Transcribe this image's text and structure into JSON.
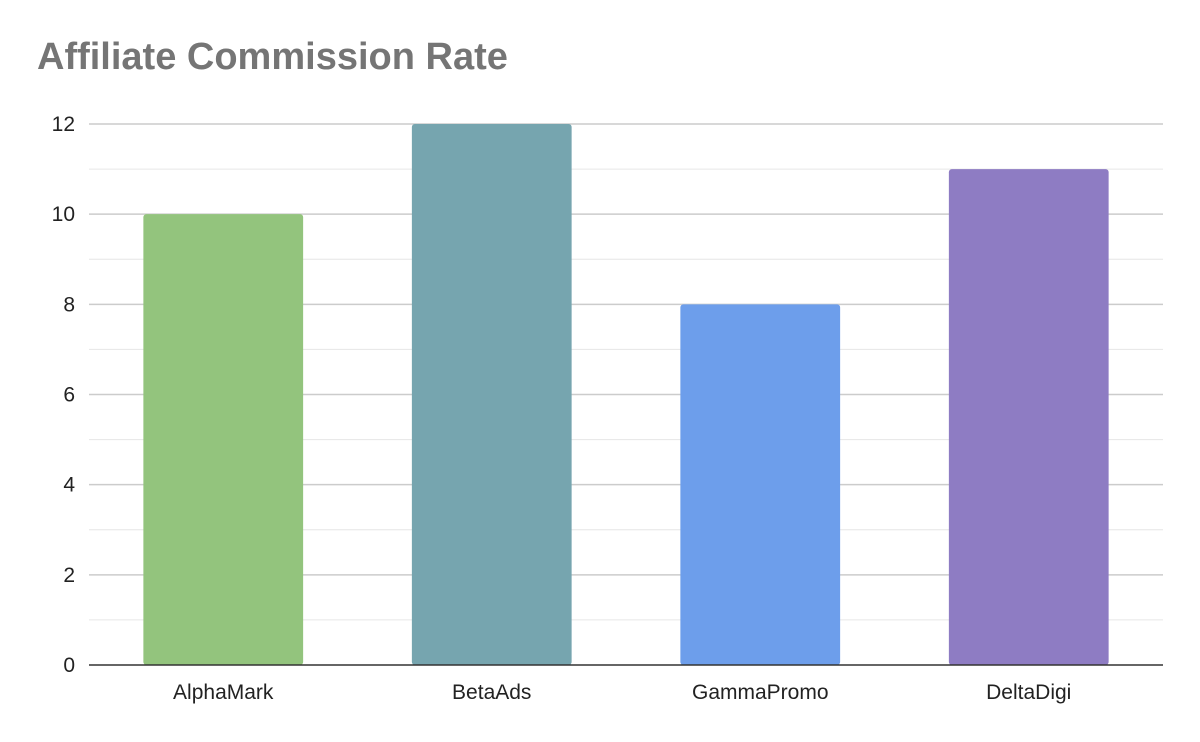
{
  "chart_data": {
    "type": "bar",
    "title": "Affiliate Commission Rate",
    "xlabel": "",
    "ylabel": "",
    "categories": [
      "AlphaMark",
      "BetaAds",
      "GammaPromo",
      "DeltaDigi"
    ],
    "values": [
      10,
      12,
      8,
      11
    ],
    "colors": [
      "#93c47d",
      "#76a5af",
      "#6d9eeb",
      "#8e7cc3"
    ],
    "ylim": [
      0,
      12
    ],
    "yticks": [
      0,
      2,
      4,
      6,
      8,
      10,
      12
    ],
    "grid": true,
    "legend": "none"
  }
}
